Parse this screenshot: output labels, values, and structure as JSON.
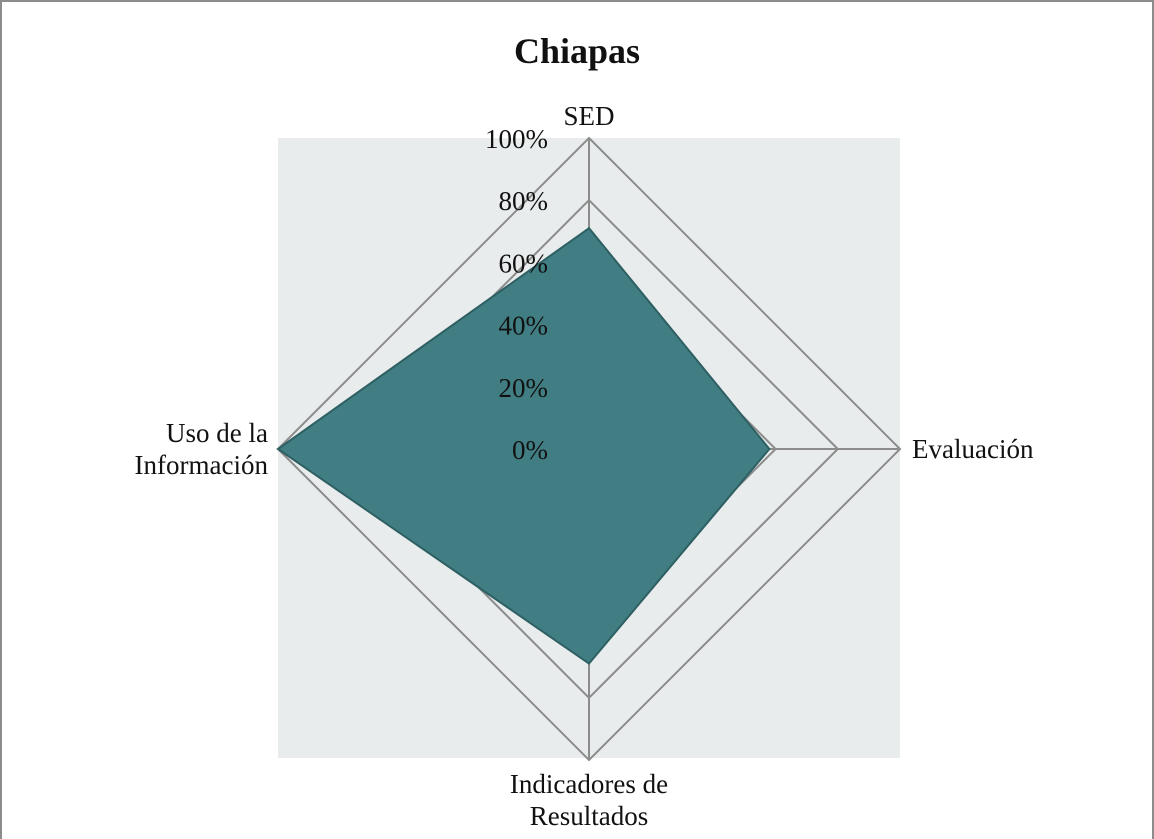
{
  "chart_data": {
    "type": "radar",
    "title": "Chiapas",
    "categories": [
      "SED",
      "Evaluación",
      "Indicadores de Resultados",
      "Uso de la Información"
    ],
    "series": [
      {
        "name": "Chiapas",
        "color": "#417e83",
        "values": [
          71,
          58,
          69,
          100
        ]
      }
    ],
    "rlim": [
      0,
      100
    ],
    "rticks": [
      {
        "value": 0,
        "label": "0%"
      },
      {
        "value": 20,
        "label": "20%"
      },
      {
        "value": 40,
        "label": "40%"
      },
      {
        "value": 60,
        "label": "60%"
      },
      {
        "value": 80,
        "label": "80%"
      },
      {
        "value": 100,
        "label": "100%"
      }
    ],
    "grid": true
  }
}
